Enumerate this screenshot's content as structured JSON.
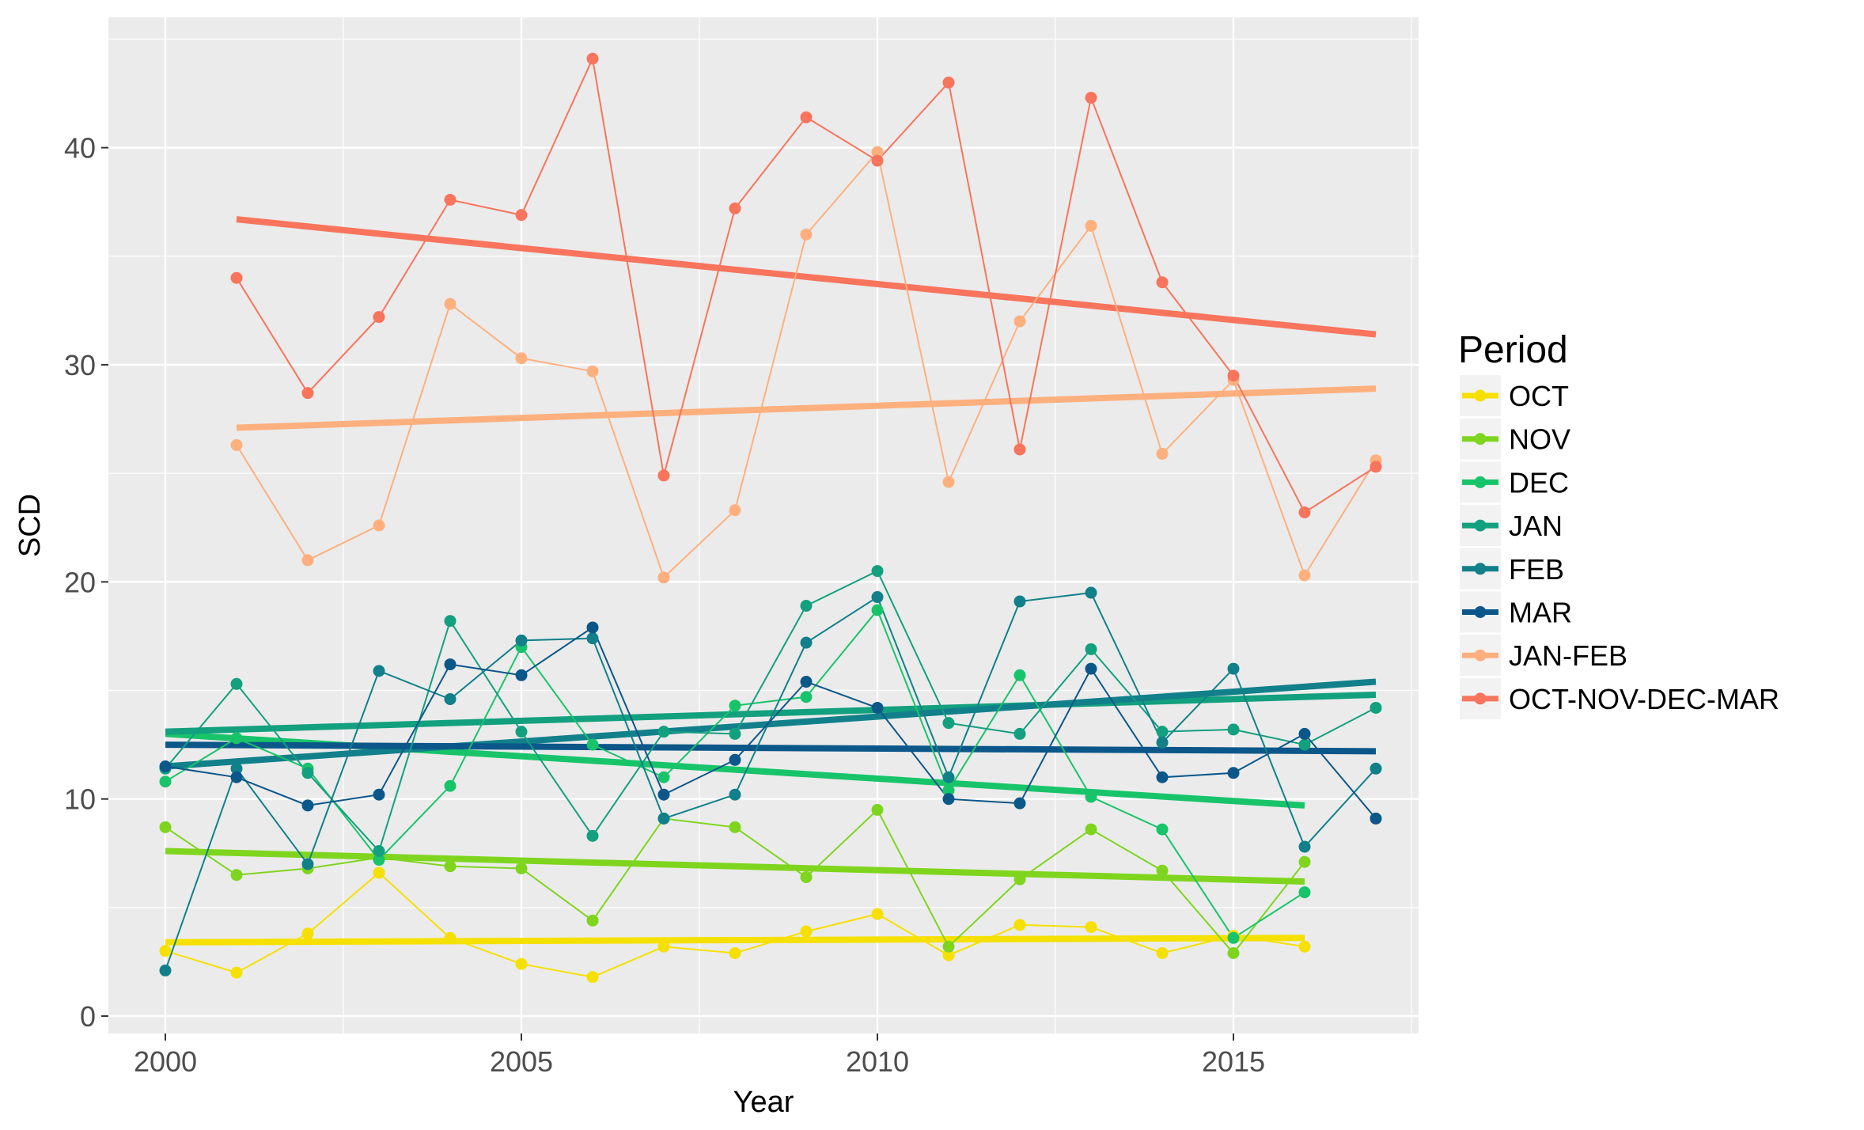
{
  "chart_data": {
    "type": "line",
    "title": "",
    "xlabel": "Year",
    "ylabel": "SCD",
    "xlim": [
      1999.2,
      2017.6
    ],
    "ylim": [
      -0.8,
      46
    ],
    "x_ticks": [
      2000,
      2005,
      2010,
      2015
    ],
    "x_tick_labels": [
      "2000",
      "2005",
      "2010",
      "2015"
    ],
    "y_ticks": [
      0,
      10,
      20,
      30,
      40
    ],
    "y_tick_labels": [
      "0",
      "10",
      "20",
      "30",
      "40"
    ],
    "grid": true,
    "panel_background": "#ebebeb",
    "legend": {
      "title": "Period",
      "position": "right"
    },
    "series": [
      {
        "name": "OCT",
        "color": "#f5e000",
        "x": [
          2000,
          2001,
          2002,
          2003,
          2004,
          2005,
          2006,
          2007,
          2008,
          2009,
          2010,
          2011,
          2012,
          2013,
          2014,
          2015,
          2016
        ],
        "values": [
          3.0,
          2.0,
          3.8,
          6.6,
          3.6,
          2.4,
          1.8,
          3.2,
          2.9,
          3.9,
          4.7,
          2.8,
          4.2,
          4.1,
          2.9,
          3.7,
          3.2
        ],
        "trend": [
          [
            2000,
            3.4
          ],
          [
            2016,
            3.6
          ]
        ]
      },
      {
        "name": "NOV",
        "color": "#7fd51e",
        "x": [
          2000,
          2001,
          2002,
          2003,
          2004,
          2005,
          2006,
          2007,
          2008,
          2009,
          2010,
          2011,
          2012,
          2013,
          2014,
          2015,
          2016
        ],
        "values": [
          8.7,
          6.5,
          6.8,
          7.3,
          6.9,
          6.8,
          4.4,
          9.1,
          8.7,
          6.4,
          9.5,
          3.2,
          6.3,
          8.6,
          6.7,
          2.9,
          7.1
        ],
        "trend": [
          [
            2000,
            7.6
          ],
          [
            2016,
            6.2
          ]
        ]
      },
      {
        "name": "DEC",
        "color": "#18c46a",
        "x": [
          2000,
          2001,
          2002,
          2003,
          2004,
          2005,
          2006,
          2007,
          2008,
          2009,
          2010,
          2011,
          2012,
          2013,
          2014,
          2015,
          2016
        ],
        "values": [
          10.8,
          12.8,
          11.4,
          7.2,
          10.6,
          17.0,
          12.5,
          11.0,
          14.3,
          14.7,
          18.7,
          10.4,
          15.7,
          10.1,
          8.6,
          3.6,
          5.7
        ],
        "trend": [
          [
            2000,
            13.0
          ],
          [
            2016,
            9.7
          ]
        ]
      },
      {
        "name": "JAN",
        "color": "#12a07e",
        "x": [
          2000,
          2001,
          2002,
          2003,
          2004,
          2005,
          2006,
          2007,
          2008,
          2009,
          2010,
          2011,
          2012,
          2013,
          2014,
          2015,
          2016,
          2017
        ],
        "values": [
          11.4,
          15.3,
          11.2,
          7.6,
          18.2,
          13.1,
          8.3,
          13.1,
          13.0,
          18.9,
          20.5,
          13.5,
          13.0,
          16.9,
          13.1,
          13.2,
          12.5,
          14.2
        ],
        "trend": [
          [
            2000,
            13.1
          ],
          [
            2017,
            14.8
          ]
        ]
      },
      {
        "name": "FEB",
        "color": "#11808a",
        "x": [
          2000,
          2001,
          2002,
          2003,
          2004,
          2005,
          2006,
          2007,
          2008,
          2009,
          2010,
          2011,
          2012,
          2013,
          2014,
          2015,
          2016,
          2017
        ],
        "values": [
          2.1,
          11.4,
          7.0,
          15.9,
          14.6,
          17.3,
          17.4,
          9.1,
          10.2,
          17.2,
          19.3,
          11.0,
          19.1,
          19.5,
          12.6,
          16.0,
          7.8,
          11.4
        ],
        "trend": [
          [
            2000,
            11.5
          ],
          [
            2017,
            15.4
          ]
        ]
      },
      {
        "name": "MAR",
        "color": "#0c5789",
        "x": [
          2000,
          2001,
          2002,
          2003,
          2004,
          2005,
          2006,
          2007,
          2008,
          2009,
          2010,
          2011,
          2012,
          2013,
          2014,
          2015,
          2016,
          2017
        ],
        "values": [
          11.5,
          11.0,
          9.7,
          10.2,
          16.2,
          15.7,
          17.9,
          10.2,
          11.8,
          15.4,
          14.2,
          10.0,
          9.8,
          16.0,
          11.0,
          11.2,
          13.0,
          9.1
        ],
        "trend": [
          [
            2000,
            12.5
          ],
          [
            2017,
            12.2
          ]
        ]
      },
      {
        "name": "JAN-FEB",
        "color": "#fdb07e",
        "x": [
          2001,
          2002,
          2003,
          2004,
          2005,
          2006,
          2007,
          2008,
          2009,
          2010,
          2011,
          2012,
          2013,
          2014,
          2015,
          2016,
          2017
        ],
        "values": [
          26.3,
          21.0,
          22.6,
          32.8,
          30.3,
          29.7,
          20.2,
          23.3,
          36.0,
          39.8,
          24.6,
          32.0,
          36.4,
          25.9,
          29.3,
          20.3,
          25.6
        ],
        "trend": [
          [
            2001,
            27.1
          ],
          [
            2017,
            28.9
          ]
        ]
      },
      {
        "name": "OCT-NOV-DEC-MAR",
        "color": "#f8745c",
        "x": [
          2001,
          2002,
          2003,
          2004,
          2005,
          2006,
          2007,
          2008,
          2009,
          2010,
          2011,
          2012,
          2013,
          2014,
          2015,
          2016,
          2017
        ],
        "values": [
          34.0,
          28.7,
          32.2,
          37.6,
          36.9,
          44.1,
          24.9,
          37.2,
          41.4,
          39.4,
          43.0,
          26.1,
          42.3,
          33.8,
          29.5,
          23.2,
          25.3
        ],
        "trend": [
          [
            2001,
            36.7
          ],
          [
            2017,
            31.4
          ]
        ]
      }
    ]
  }
}
